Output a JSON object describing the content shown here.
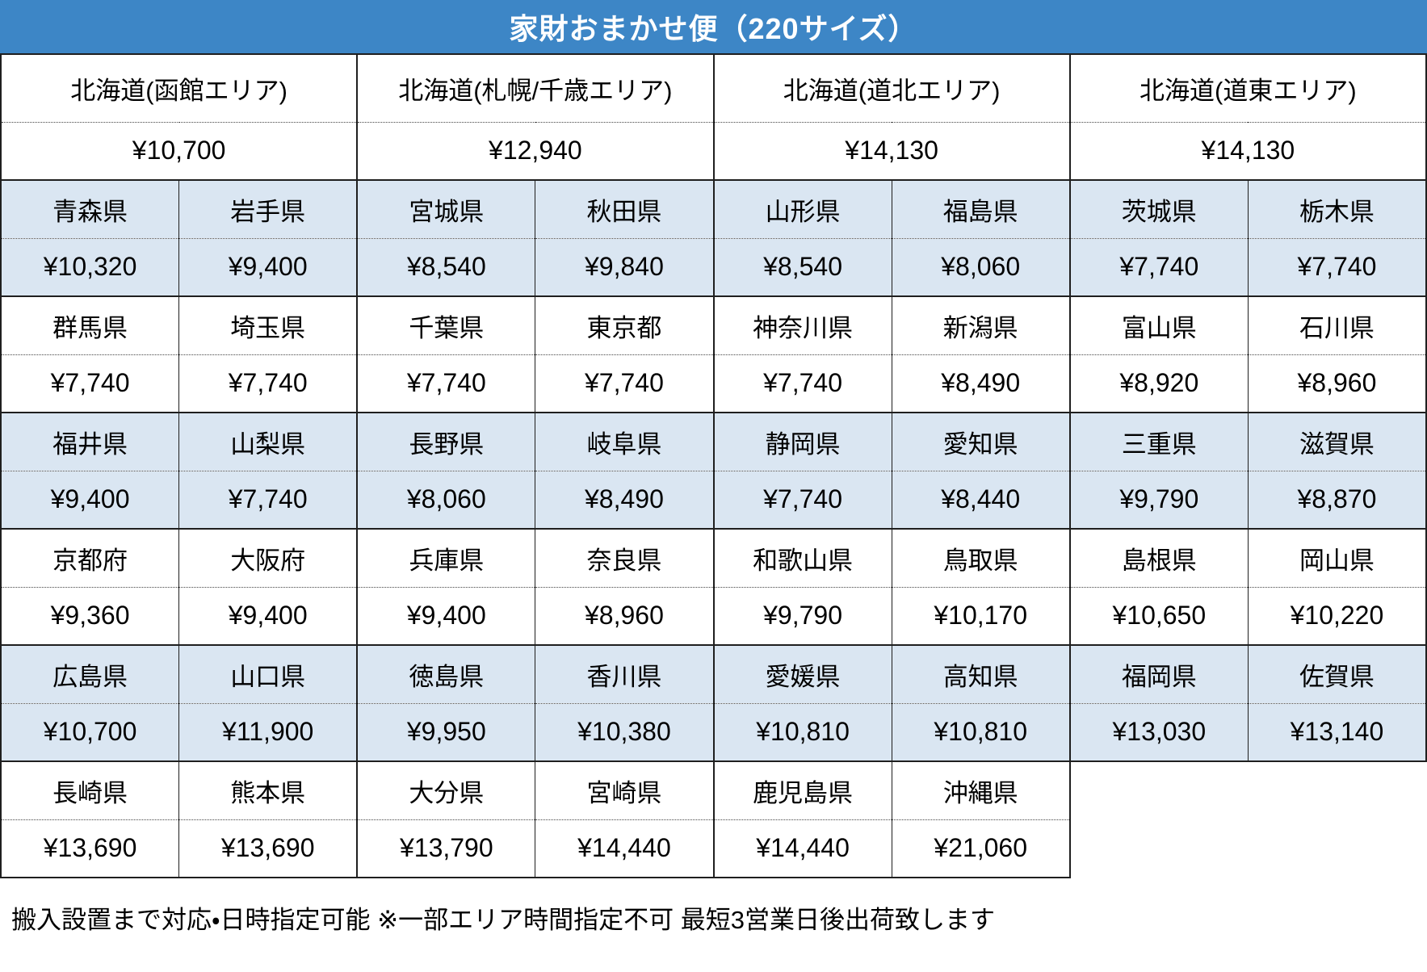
{
  "colors": {
    "header_bg": "#3d86c6",
    "header_text": "#ffffff",
    "band_blue": "#dae6f2",
    "band_white": "#ffffff",
    "border": "#1f1f1f"
  },
  "chart_data": {
    "type": "table",
    "title": "家財おまかせ便（220サイズ）",
    "currency": "JPY",
    "hokkaido_areas": [
      {
        "name": "北海道(函館エリア)",
        "price": "¥10,700"
      },
      {
        "name": "北海道(札幌/千歳エリア)",
        "price": "¥12,940"
      },
      {
        "name": "北海道(道北エリア)",
        "price": "¥14,130"
      },
      {
        "name": "北海道(道東エリア)",
        "price": "¥14,130"
      }
    ],
    "prefecture_groups": [
      {
        "shade": "blue",
        "cells": [
          {
            "name": "青森県",
            "price": "¥10,320"
          },
          {
            "name": "岩手県",
            "price": "¥9,400"
          },
          {
            "name": "宮城県",
            "price": "¥8,540"
          },
          {
            "name": "秋田県",
            "price": "¥9,840"
          },
          {
            "name": "山形県",
            "price": "¥8,540"
          },
          {
            "name": "福島県",
            "price": "¥8,060"
          },
          {
            "name": "茨城県",
            "price": "¥7,740"
          },
          {
            "name": "栃木県",
            "price": "¥7,740"
          }
        ]
      },
      {
        "shade": "white",
        "cells": [
          {
            "name": "群馬県",
            "price": "¥7,740"
          },
          {
            "name": "埼玉県",
            "price": "¥7,740"
          },
          {
            "name": "千葉県",
            "price": "¥7,740"
          },
          {
            "name": "東京都",
            "price": "¥7,740"
          },
          {
            "name": "神奈川県",
            "price": "¥7,740"
          },
          {
            "name": "新潟県",
            "price": "¥8,490"
          },
          {
            "name": "富山県",
            "price": "¥8,920"
          },
          {
            "name": "石川県",
            "price": "¥8,960"
          }
        ]
      },
      {
        "shade": "blue",
        "cells": [
          {
            "name": "福井県",
            "price": "¥9,400"
          },
          {
            "name": "山梨県",
            "price": "¥7,740"
          },
          {
            "name": "長野県",
            "price": "¥8,060"
          },
          {
            "name": "岐阜県",
            "price": "¥8,490"
          },
          {
            "name": "静岡県",
            "price": "¥7,740"
          },
          {
            "name": "愛知県",
            "price": "¥8,440"
          },
          {
            "name": "三重県",
            "price": "¥9,790"
          },
          {
            "name": "滋賀県",
            "price": "¥8,870"
          }
        ]
      },
      {
        "shade": "white",
        "cells": [
          {
            "name": "京都府",
            "price": "¥9,360"
          },
          {
            "name": "大阪府",
            "price": "¥9,400"
          },
          {
            "name": "兵庫県",
            "price": "¥9,400"
          },
          {
            "name": "奈良県",
            "price": "¥8,960"
          },
          {
            "name": "和歌山県",
            "price": "¥9,790"
          },
          {
            "name": "鳥取県",
            "price": "¥10,170"
          },
          {
            "name": "島根県",
            "price": "¥10,650"
          },
          {
            "name": "岡山県",
            "price": "¥10,220"
          }
        ]
      },
      {
        "shade": "blue",
        "cells": [
          {
            "name": "広島県",
            "price": "¥10,700"
          },
          {
            "name": "山口県",
            "price": "¥11,900"
          },
          {
            "name": "徳島県",
            "price": "¥9,950"
          },
          {
            "name": "香川県",
            "price": "¥10,380"
          },
          {
            "name": "愛媛県",
            "price": "¥10,810"
          },
          {
            "name": "高知県",
            "price": "¥10,810"
          },
          {
            "name": "福岡県",
            "price": "¥13,030"
          },
          {
            "name": "佐賀県",
            "price": "¥13,140"
          }
        ]
      },
      {
        "shade": "white",
        "cells": [
          {
            "name": "長崎県",
            "price": "¥13,690"
          },
          {
            "name": "熊本県",
            "price": "¥13,690"
          },
          {
            "name": "大分県",
            "price": "¥13,790"
          },
          {
            "name": "宮崎県",
            "price": "¥14,440"
          },
          {
            "name": "鹿児島県",
            "price": "¥14,440"
          },
          {
            "name": "沖縄県",
            "price": "¥21,060"
          }
        ]
      }
    ],
    "footer_note": "搬入設置まで対応・日時指定可能 ※一部エリア時間指定不可 最短3営業日後出荷致します"
  }
}
